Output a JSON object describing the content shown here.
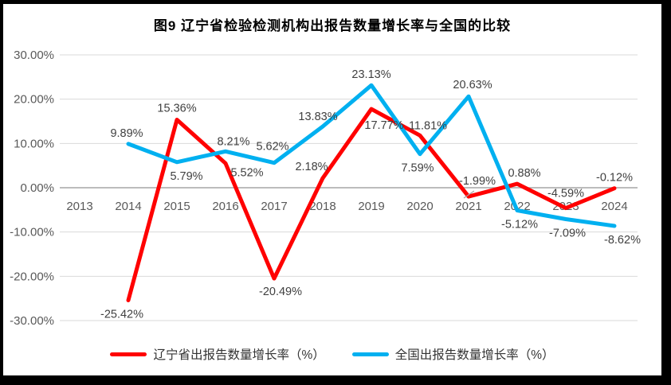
{
  "chart_data": {
    "type": "line",
    "title": "图9  辽宁省检验检测机构出报告数量增长率与全国的比较",
    "categories": [
      "2013",
      "2014",
      "2015",
      "2016",
      "2017",
      "2018",
      "2019",
      "2020",
      "2021",
      "2022",
      "2023",
      "2024"
    ],
    "series": [
      {
        "name": "辽宁省出报告数量增长率（%）",
        "color": "#FF0000",
        "values": [
          null,
          -25.42,
          15.36,
          5.52,
          -20.49,
          2.18,
          17.77,
          11.81,
          -1.99,
          0.88,
          -4.59,
          -0.12
        ],
        "data_labels": [
          null,
          "-25.42%",
          "15.36%",
          "5.52%",
          "-20.49%",
          "2.18%",
          "17.77%",
          "11.81%",
          "-1.99%",
          "0.88%",
          "-4.59%",
          "-0.12%"
        ]
      },
      {
        "name": "全国出报告数量增长率（%）",
        "color": "#00B0F0",
        "values": [
          null,
          9.89,
          5.79,
          8.21,
          5.62,
          13.83,
          23.13,
          7.59,
          20.63,
          -5.12,
          -7.09,
          -8.62
        ],
        "data_labels": [
          null,
          "9.89%",
          "5.79%",
          "8.21%",
          "5.62%",
          "13.83%",
          "23.13%",
          "7.59%",
          "20.63%",
          "-5.12%",
          "-7.09%",
          "-8.62%"
        ]
      }
    ],
    "y_axis": {
      "tick_labels": [
        "30.00%",
        "20.00%",
        "10.00%",
        "0.00%",
        "-10.00%",
        "-20.00%",
        "-30.00%"
      ],
      "tick_values": [
        30,
        20,
        10,
        0,
        -10,
        -20,
        -30
      ],
      "min": -30,
      "max": 30
    },
    "x_axis": {
      "label": ""
    },
    "grid": true,
    "legend_position": "bottom",
    "colors": {
      "gridline": "#D9D9D9",
      "zero_axis": "#A6A6A6",
      "tick_text": "#595959",
      "data_label_text": "#404040",
      "leader_line": "#A6A6A6",
      "background": "#FFFFFF",
      "frame": "#000000"
    }
  }
}
